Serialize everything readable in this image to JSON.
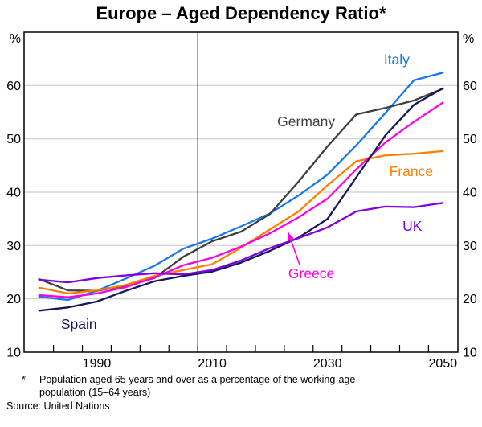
{
  "title": "Europe – Aged Dependency Ratio*",
  "footnote": {
    "marker": "*",
    "line1": "Population aged 65 years and over as a percentage of the working-age",
    "line2": "population (15–64 years)",
    "source": "Source: United Nations"
  },
  "chart_data": {
    "type": "line",
    "title": "Europe – Aged Dependency Ratio*",
    "ylabel_unit": "%",
    "ylim": [
      10,
      70
    ],
    "y_gridlines": [
      20,
      30,
      40,
      50,
      60
    ],
    "y_tick_labels": [
      "10",
      "20",
      "30",
      "40",
      "50",
      "60"
    ],
    "x_label_years": [
      1990,
      2010,
      2030,
      2050
    ],
    "x_minor_ticks": [
      1982.5,
      1987.5,
      1992.5,
      1997.5,
      2002.5,
      2007.5,
      2012.5,
      2017.5,
      2022.5,
      2027.5,
      2032.5,
      2037.5,
      2042.5,
      2047.5
    ],
    "x_range": [
      1977.4,
      2052.6
    ],
    "divider_year": 2007.5,
    "legend_position": "inline-labels",
    "grid": true,
    "x": [
      1980,
      1985,
      1990,
      1995,
      2000,
      2005,
      2010,
      2015,
      2020,
      2025,
      2030,
      2035,
      2040,
      2045,
      2050
    ],
    "series": [
      {
        "name": "Italy",
        "color": "#1778f2",
        "values": [
          20.4,
          19.8,
          21.5,
          23.8,
          26.2,
          29.4,
          31.3,
          33.6,
          36.0,
          39.4,
          43.3,
          48.8,
          54.8,
          61.0,
          62.4
        ],
        "label_anchor": {
          "year": 2042.0,
          "value": 64.9
        }
      },
      {
        "name": "Germany",
        "color": "#3f3f3f",
        "values": [
          23.7,
          21.6,
          21.5,
          22.5,
          23.9,
          27.9,
          30.8,
          32.6,
          35.9,
          42.0,
          48.6,
          54.6,
          55.8,
          57.2,
          59.4
        ],
        "label_anchor": {
          "year": 2026.3,
          "value": 53.3
        }
      },
      {
        "name": "France",
        "color": "#ff7f00",
        "values": [
          22.1,
          21.0,
          21.6,
          22.6,
          24.3,
          25.4,
          26.5,
          29.6,
          33.0,
          36.4,
          41.3,
          45.8,
          46.9,
          47.2,
          47.7
        ],
        "label_anchor": {
          "year": 2044.5,
          "value": 43.9
        }
      },
      {
        "name": "Greece",
        "color": "#ff00e1",
        "values": [
          20.7,
          20.3,
          21.0,
          22.2,
          24.0,
          26.3,
          27.7,
          29.8,
          32.3,
          35.3,
          38.8,
          44.3,
          49.3,
          53.2,
          56.8
        ],
        "label_anchor": {
          "year": 2027.2,
          "value": 24.8
        }
      },
      {
        "name": "Spain",
        "color": "#16165c",
        "values": [
          17.8,
          18.4,
          19.5,
          21.5,
          23.3,
          24.3,
          25.1,
          26.8,
          29.0,
          31.5,
          35.0,
          42.8,
          50.6,
          56.4,
          59.5
        ],
        "label_anchor": {
          "year": 1986.9,
          "value": 15.3
        }
      },
      {
        "name": "UK",
        "color": "#8000e0",
        "values": [
          23.6,
          23.1,
          23.9,
          24.4,
          24.8,
          24.6,
          25.4,
          27.2,
          29.5,
          31.4,
          33.4,
          36.4,
          37.3,
          37.2,
          38.0
        ],
        "label_anchor": {
          "year": 2044.7,
          "value": 33.7
        }
      }
    ],
    "annotation_arrow": {
      "series": "Greece",
      "from": {
        "year": 2025.2,
        "value": 26.3
      },
      "to": {
        "year": 2023.2,
        "value": 32.4
      }
    },
    "colors": {
      "grid": "#cccccc",
      "frame": "#000000",
      "divider": "#3a3a3a",
      "text": "#000000"
    }
  }
}
